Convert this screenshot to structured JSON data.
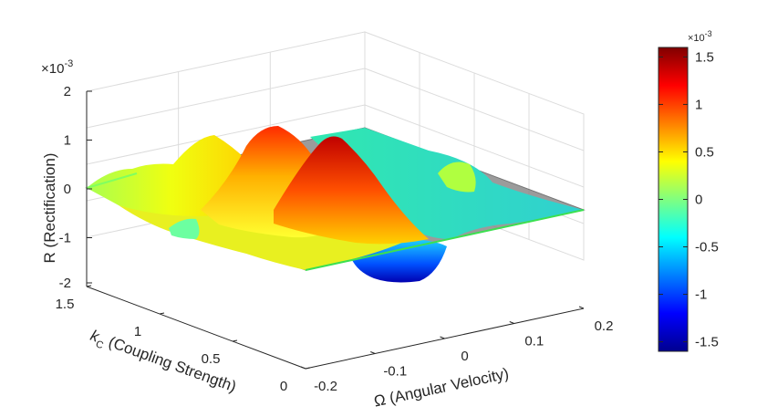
{
  "chart_data": {
    "type": "surface",
    "zlabel": "R (Rectification)",
    "xlabel": "Ω (Angular Velocity)",
    "ylabel_main": "k",
    "ylabel_sub": "C",
    "ylabel_rest": " (Coupling Strength)",
    "z_multiplier": "×10",
    "z_multiplier_exp": "-3",
    "x_ticks": [
      "-0.2",
      "-0.1",
      "0",
      "0.1",
      "0.2"
    ],
    "y_ticks": [
      "0",
      "0.5",
      "1",
      "1.5"
    ],
    "z_ticks": [
      "2",
      "1",
      "0",
      "-1",
      "-2"
    ],
    "xlim": [
      -0.2,
      0.2
    ],
    "ylim": [
      0,
      1.5
    ],
    "zlim": [
      -2,
      2
    ],
    "colorbar": {
      "multiplier": "×10",
      "multiplier_exp": "-3",
      "ticks": [
        "1.5",
        "1",
        "0.5",
        "0",
        "-0.5",
        "-1",
        "-1.5"
      ],
      "tick_values": [
        1.5,
        1.0,
        0.5,
        0.0,
        -0.5,
        -1.0,
        -1.5
      ],
      "range": [
        -1.6,
        1.6
      ],
      "colormap": "jet"
    },
    "grid": true,
    "surface_features": [
      {
        "description_omega": 0.0,
        "k_c": 1.3,
        "R": 1.5
      },
      {
        "description_omega": -0.05,
        "k_c": 1.0,
        "R": 1.2
      },
      {
        "description_omega": 0.05,
        "k_c": 0.6,
        "R": -1.5
      },
      {
        "description_omega": 0.1,
        "k_c": 1.2,
        "R": -0.3
      }
    ]
  }
}
